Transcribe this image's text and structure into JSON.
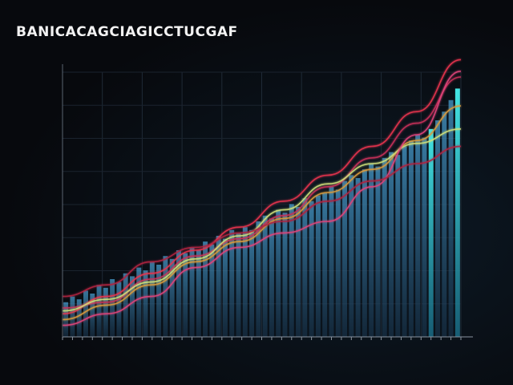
{
  "chart_data": {
    "type": "bar",
    "title": "BANICACAGCIAGICCTUCGAF",
    "xlabel": "",
    "ylabel": "",
    "ylim": [
      0,
      100
    ],
    "grid": true,
    "legend": "none",
    "bar_color": "#3a8fc4",
    "highlight_bar_color": "#2fd6e0",
    "bars": [
      {
        "value": 12
      },
      {
        "value": 14
      },
      {
        "value": 13
      },
      {
        "value": 16
      },
      {
        "value": 15
      },
      {
        "value": 18
      },
      {
        "value": 17
      },
      {
        "value": 20
      },
      {
        "value": 19
      },
      {
        "value": 22
      },
      {
        "value": 21
      },
      {
        "value": 24
      },
      {
        "value": 23
      },
      {
        "value": 26
      },
      {
        "value": 25
      },
      {
        "value": 28
      },
      {
        "value": 27
      },
      {
        "value": 30
      },
      {
        "value": 29
      },
      {
        "value": 31
      },
      {
        "value": 30
      },
      {
        "value": 33
      },
      {
        "value": 32
      },
      {
        "value": 35
      },
      {
        "value": 34
      },
      {
        "value": 37
      },
      {
        "value": 36
      },
      {
        "value": 38
      },
      {
        "value": 37
      },
      {
        "value": 40
      },
      {
        "value": 42
      },
      {
        "value": 41
      },
      {
        "value": 44
      },
      {
        "value": 43
      },
      {
        "value": 46
      },
      {
        "value": 45
      },
      {
        "value": 48
      },
      {
        "value": 47
      },
      {
        "value": 49
      },
      {
        "value": 50
      },
      {
        "value": 52
      },
      {
        "value": 51
      },
      {
        "value": 54
      },
      {
        "value": 56
      },
      {
        "value": 55
      },
      {
        "value": 58
      },
      {
        "value": 60
      },
      {
        "value": 59
      },
      {
        "value": 62
      },
      {
        "value": 64
      },
      {
        "value": 63
      },
      {
        "value": 66
      },
      {
        "value": 68
      },
      {
        "value": 70
      },
      {
        "value": 69
      },
      {
        "value": 72
      },
      {
        "value": 75
      },
      {
        "value": 78
      },
      {
        "value": 82
      },
      {
        "value": 86
      }
    ],
    "series": [
      {
        "color": "#e8344e",
        "values": [
          8,
          14,
          22,
          30,
          38,
          47,
          56,
          66,
          78,
          96
        ]
      },
      {
        "color": "#c8305a",
        "values": [
          10,
          12,
          20,
          28,
          34,
          42,
          52,
          62,
          74,
          90
        ]
      },
      {
        "color": "#d99a3c",
        "values": [
          6,
          11,
          18,
          26,
          33,
          41,
          50,
          58,
          68,
          80
        ]
      },
      {
        "color": "#cfe07a",
        "values": [
          9,
          13,
          19,
          27,
          35,
          44,
          53,
          60,
          67,
          72
        ]
      },
      {
        "color": "#e0447a",
        "values": [
          4,
          8,
          14,
          24,
          31,
          36,
          40,
          52,
          70,
          92
        ]
      },
      {
        "color": "#b02440",
        "values": [
          14,
          18,
          26,
          31,
          36,
          40,
          47,
          54,
          60,
          66
        ]
      }
    ]
  }
}
